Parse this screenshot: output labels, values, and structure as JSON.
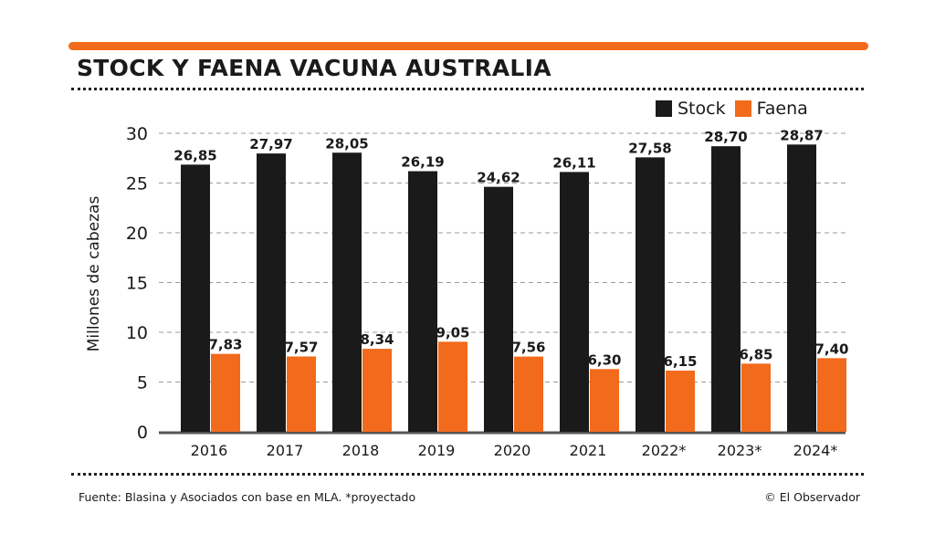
{
  "header": {
    "title": "STOCK Y FAENA VACUNA AUSTRALIA"
  },
  "colors": {
    "accent": "#f26a1b",
    "stock": "#1a1a1a",
    "faena": "#f26a1b",
    "grid": "#9a9a9a"
  },
  "chart_data": {
    "type": "bar",
    "title": "STOCK Y FAENA VACUNA AUSTRALIA",
    "xlabel": "",
    "ylabel": "Millones de cabezas",
    "ylim": [
      0,
      30
    ],
    "yticks": [
      "0",
      "5",
      "10",
      "15",
      "20",
      "25",
      "30"
    ],
    "grid": true,
    "legend_position": "top-right",
    "categories": [
      "2016",
      "2017",
      "2018",
      "2019",
      "2020",
      "2021",
      "2022*",
      "2023*",
      "2024*"
    ],
    "series": [
      {
        "name": "Stock",
        "values": [
          26.85,
          27.97,
          28.05,
          26.19,
          24.62,
          26.11,
          27.58,
          28.7,
          28.87
        ],
        "labels": [
          "26,85",
          "27,97",
          "28,05",
          "26,19",
          "24,62",
          "26,11",
          "27,58",
          "28,70",
          "28,87"
        ]
      },
      {
        "name": "Faena",
        "values": [
          7.83,
          7.57,
          8.34,
          9.05,
          7.56,
          6.3,
          6.15,
          6.85,
          7.4
        ],
        "labels": [
          "7,83",
          "7,57",
          "8,34",
          "9,05",
          "7,56",
          "6,30",
          "6,15",
          "6,85",
          "7,40"
        ]
      }
    ]
  },
  "footer": {
    "source": "Fuente: Blasina y Asociados con base en MLA. *proyectado",
    "credit": "© El Observador"
  }
}
